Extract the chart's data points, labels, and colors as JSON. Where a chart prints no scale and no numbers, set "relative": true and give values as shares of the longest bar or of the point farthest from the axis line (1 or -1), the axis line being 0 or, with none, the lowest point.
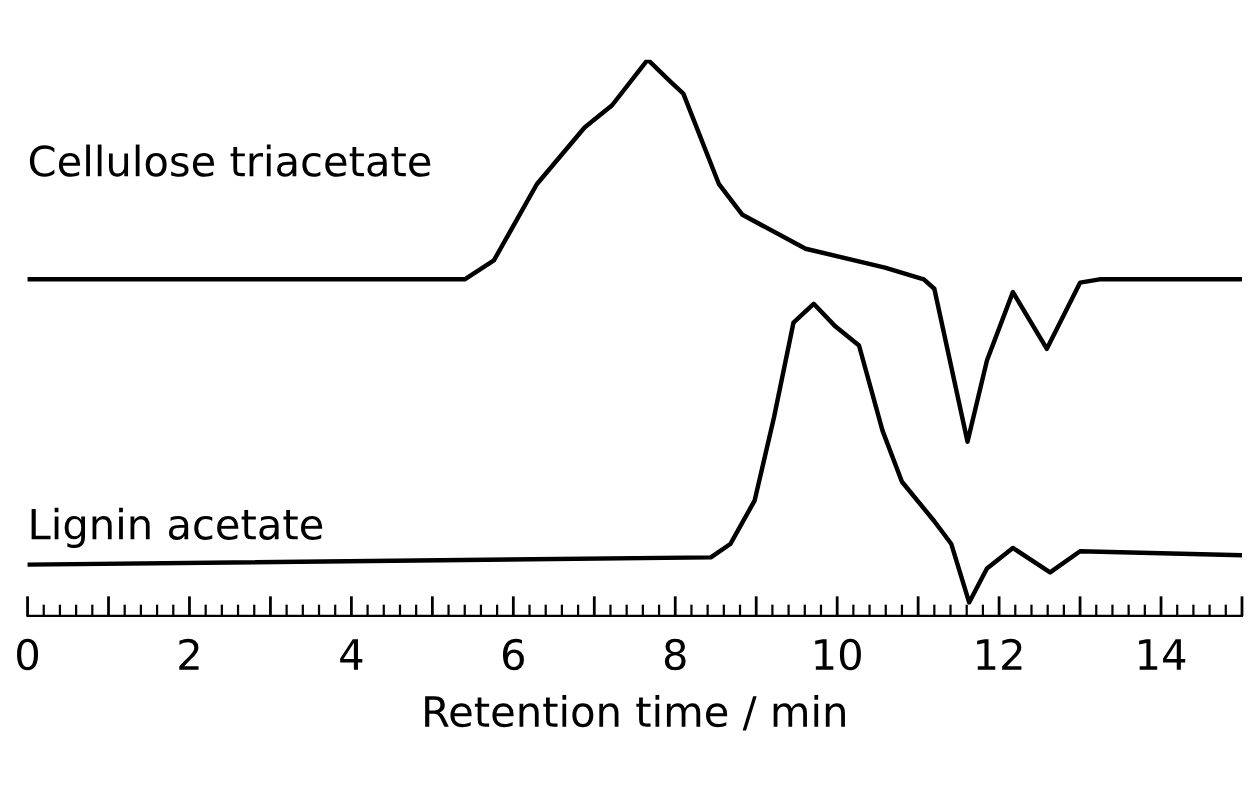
{
  "chart_data": {
    "type": "line",
    "relative": true,
    "xlabel": "Retention time / min",
    "xlim": [
      0,
      15
    ],
    "xticks": [
      0,
      {
        "value": 1,
        "label": null
      },
      2,
      {
        "value": 3,
        "label": null
      },
      4,
      {
        "value": 5,
        "label": null
      },
      6,
      {
        "value": 7,
        "label": null
      },
      8,
      {
        "value": 9,
        "label": null
      },
      10,
      {
        "value": 11,
        "label": null
      },
      12,
      {
        "value": 13,
        "label": null
      },
      14,
      {
        "value": 15,
        "label": null
      }
    ],
    "legend": false,
    "grid": false,
    "marker": "none",
    "line_style": "solid",
    "tick_labels": "x",
    "series": [
      {
        "name": "Cellulose triacetate",
        "color": "#000000",
        "x": [
          0,
          5.4,
          5.76,
          6.29,
          6.88,
          7.22,
          7.66,
          7.95,
          8.1,
          8.54,
          8.83,
          9.61,
          10.59,
          11.07,
          11.2,
          11.61,
          11.85,
          12.17,
          12.59,
          13.0,
          13.24,
          15
        ],
        "values": [
          0.605,
          0.605,
          0.639,
          0.776,
          0.878,
          0.918,
          1.0,
          0.959,
          0.939,
          0.776,
          0.721,
          0.66,
          0.626,
          0.605,
          0.588,
          0.313,
          0.459,
          0.582,
          0.48,
          0.599,
          0.605,
          0.605
        ]
      },
      {
        "name": "Lignin acetate",
        "color": "#000000",
        "x": [
          0,
          8.44,
          8.68,
          8.98,
          9.22,
          9.46,
          9.71,
          9.98,
          10.27,
          10.56,
          10.8,
          11.2,
          11.41,
          11.63,
          11.85,
          12.17,
          12.63,
          13.0,
          15
        ],
        "values": [
          0.092,
          0.105,
          0.129,
          0.207,
          0.357,
          0.527,
          0.561,
          0.52,
          0.486,
          0.333,
          0.241,
          0.17,
          0.129,
          0.024,
          0.085,
          0.122,
          0.078,
          0.116,
          0.109
        ]
      }
    ]
  }
}
